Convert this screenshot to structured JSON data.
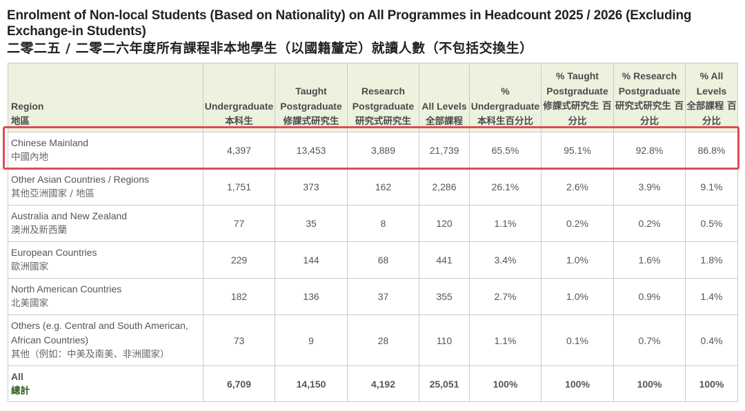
{
  "title_en": "Enrolment of Non-local Students (Based on Nationality) on All Programmes in Headcount 2025 / 2026 (Excluding Exchange-in Students)",
  "title_zh": "二零二五 / 二零二六年度所有課程非本地學生（以國籍釐定）就讀人數（不包括交換生）",
  "columns": [
    {
      "en": "Region",
      "zh": "地區"
    },
    {
      "en": "Undergraduate",
      "zh": "本科生"
    },
    {
      "en": "Taught Postgraduate",
      "zh": "修課式研究生"
    },
    {
      "en": "Research Postgraduate",
      "zh": "研究式研究生"
    },
    {
      "en": "All Levels",
      "zh": "全部課程"
    },
    {
      "en": "% Undergraduate",
      "zh": "本科生百分比"
    },
    {
      "en": "% Taught Postgraduate",
      "zh": "修課式研究生 百分比"
    },
    {
      "en": "% Research Postgraduate",
      "zh": "研究式研究生 百分比"
    },
    {
      "en": "% All Levels",
      "zh": "全部課程 百分比"
    }
  ],
  "rows": [
    {
      "region_en": "Chinese Mainland",
      "region_zh": "中國內地",
      "values": [
        "4,397",
        "13,453",
        "3,889",
        "21,739",
        "65.5%",
        "95.1%",
        "92.8%",
        "86.8%"
      ]
    },
    {
      "region_en": "Other Asian Countries / Regions",
      "region_zh": "其他亞洲國家 / 地區",
      "values": [
        "1,751",
        "373",
        "162",
        "2,286",
        "26.1%",
        "2.6%",
        "3.9%",
        "9.1%"
      ]
    },
    {
      "region_en": "Australia and New Zealand",
      "region_zh": "澳洲及新西蘭",
      "values": [
        "77",
        "35",
        "8",
        "120",
        "1.1%",
        "0.2%",
        "0.2%",
        "0.5%"
      ]
    },
    {
      "region_en": "European Countries",
      "region_zh": "歐洲國家",
      "values": [
        "229",
        "144",
        "68",
        "441",
        "3.4%",
        "1.0%",
        "1.6%",
        "1.8%"
      ]
    },
    {
      "region_en": "North American Countries",
      "region_zh": "北美國家",
      "values": [
        "182",
        "136",
        "37",
        "355",
        "2.7%",
        "1.0%",
        "0.9%",
        "1.4%"
      ]
    },
    {
      "region_en": "Others (e.g. Central and South American, African Countries)",
      "region_zh": "其他（例如：中美及南美、非洲國家）",
      "values": [
        "73",
        "9",
        "28",
        "110",
        "1.1%",
        "0.1%",
        "0.7%",
        "0.4%"
      ]
    }
  ],
  "total": {
    "region_en": "All",
    "region_zh": "總計",
    "values": [
      "6,709",
      "14,150",
      "4,192",
      "25,051",
      "100%",
      "100%",
      "100%",
      "100%"
    ]
  },
  "colors": {
    "header_bg": "#edf2df",
    "total_text": "#2e5a1c",
    "highlight_border": "#e04a55",
    "grid": "#c9c9c9"
  }
}
